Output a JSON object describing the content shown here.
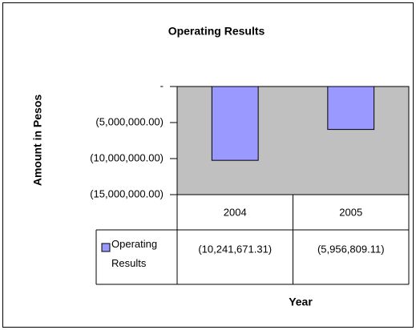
{
  "chart_data": {
    "type": "bar",
    "title": "Operating Results",
    "y_label": "Amount in Pesos",
    "x_label": "Year",
    "categories": [
      "2004",
      "2005"
    ],
    "series": [
      {
        "name": "Operating Results",
        "color": "#9999ff",
        "values": [
          -10241671.31,
          -5956809.11
        ],
        "value_labels": [
          "(10,241,671.31)",
          "(5,956,809.11)"
        ]
      }
    ],
    "ylim": [
      -15000000,
      0
    ],
    "yticks": [
      {
        "value": 0,
        "label": "-"
      },
      {
        "value": -5000000,
        "label": "(5,000,000.00)"
      },
      {
        "value": -10000000,
        "label": "(10,000,000.00)"
      },
      {
        "value": -15000000,
        "label": "(15,000,000.00)"
      }
    ],
    "plot_background": "#c0c0c0"
  }
}
